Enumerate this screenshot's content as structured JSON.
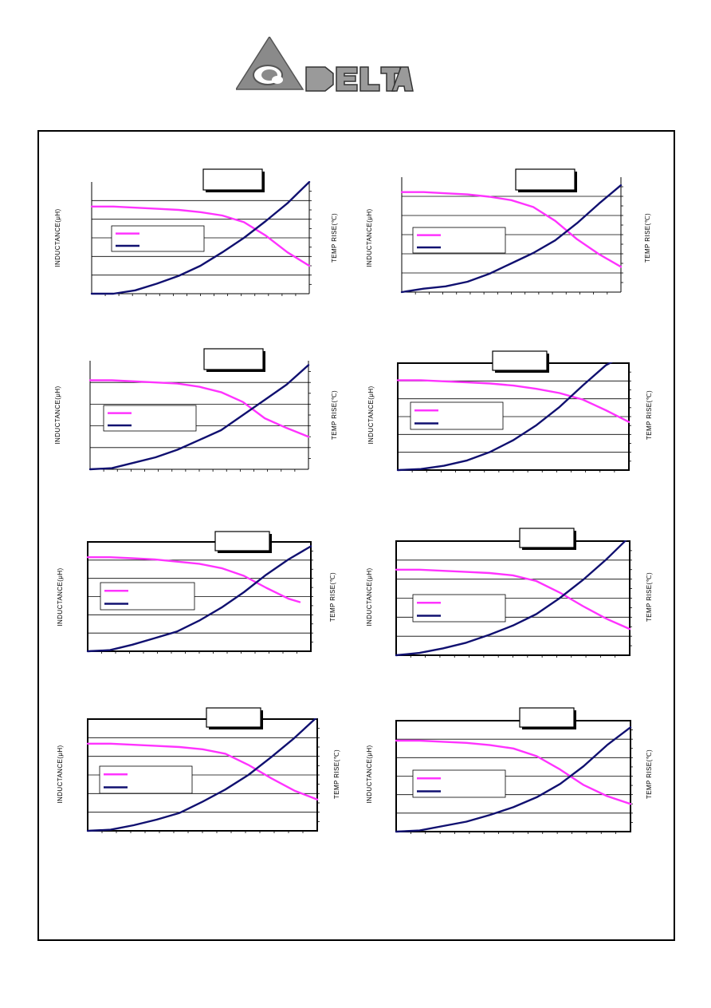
{
  "brand": {
    "name": "DELTA",
    "primary_color": "#ffffff",
    "accent_color": "#000000"
  },
  "colors": {
    "inductance": "#ff33ff",
    "temp_rise": "#101070",
    "grid": "#000000"
  },
  "chart_data": [
    {
      "type": "line",
      "title": "",
      "ylabel": "INDUCTANCE(μH)",
      "y2label": "TEMP RISE(℃)",
      "grid": "horizontal",
      "legend": "left-middle",
      "series": [
        {
          "x": [
            0,
            0.1,
            0.2,
            0.3,
            0.4,
            0.5,
            0.6,
            0.7,
            0.8,
            0.9,
            1.0
          ],
          "values": [
            0.78,
            0.78,
            0.77,
            0.76,
            0.75,
            0.73,
            0.7,
            0.64,
            0.52,
            0.37,
            0.25
          ]
        },
        {
          "x": [
            0,
            0.1,
            0.2,
            0.3,
            0.4,
            0.5,
            0.6,
            0.7,
            0.8,
            0.9,
            1.0
          ],
          "values": [
            0.0,
            0.0,
            0.03,
            0.09,
            0.16,
            0.25,
            0.37,
            0.5,
            0.65,
            0.81,
            1.0
          ]
        }
      ]
    },
    {
      "type": "line",
      "title": "",
      "ylabel": "INDUCTANCE(μH)",
      "y2label": "TEMP RISE(℃)",
      "grid": "horizontal",
      "legend": "left-middle",
      "series": [
        {
          "x": [
            0,
            0.1,
            0.2,
            0.3,
            0.4,
            0.5,
            0.6,
            0.7,
            0.8,
            0.9,
            1.0
          ],
          "values": [
            0.87,
            0.87,
            0.86,
            0.85,
            0.83,
            0.8,
            0.74,
            0.62,
            0.46,
            0.33,
            0.22
          ]
        },
        {
          "x": [
            0,
            0.1,
            0.2,
            0.3,
            0.4,
            0.5,
            0.6,
            0.7,
            0.8,
            0.9,
            1.0
          ],
          "values": [
            0.0,
            0.03,
            0.05,
            0.09,
            0.16,
            0.25,
            0.34,
            0.45,
            0.6,
            0.77,
            0.93
          ]
        }
      ]
    },
    {
      "type": "line",
      "title": "",
      "ylabel": "INDUCTANCE(μH)",
      "y2label": "TEMP RISE(℃)",
      "grid": "horizontal",
      "legend": "left-middle",
      "series": [
        {
          "x": [
            0,
            0.1,
            0.2,
            0.3,
            0.4,
            0.5,
            0.6,
            0.7,
            0.8,
            0.9,
            1.0
          ],
          "values": [
            0.82,
            0.82,
            0.81,
            0.8,
            0.79,
            0.76,
            0.71,
            0.62,
            0.47,
            0.38,
            0.3
          ]
        },
        {
          "x": [
            0,
            0.1,
            0.2,
            0.3,
            0.4,
            0.5,
            0.6,
            0.7,
            0.8,
            0.9,
            1.0
          ],
          "values": [
            0.0,
            0.01,
            0.06,
            0.11,
            0.18,
            0.27,
            0.36,
            0.5,
            0.64,
            0.78,
            0.96
          ]
        }
      ]
    },
    {
      "type": "line",
      "title": "",
      "ylabel": "INDUCTANCE(μH)",
      "y2label": "TEMP RISE(℃)",
      "grid": "horizontal",
      "legend": "left-middle",
      "series": [
        {
          "x": [
            0,
            0.1,
            0.2,
            0.3,
            0.4,
            0.5,
            0.6,
            0.7,
            0.8,
            0.9,
            1.0
          ],
          "values": [
            0.84,
            0.84,
            0.83,
            0.82,
            0.81,
            0.79,
            0.76,
            0.72,
            0.66,
            0.56,
            0.45
          ]
        },
        {
          "x": [
            0,
            0.1,
            0.2,
            0.3,
            0.4,
            0.5,
            0.6,
            0.7,
            0.8,
            0.9,
            1.0
          ],
          "values": [
            0.0,
            0.01,
            0.04,
            0.09,
            0.17,
            0.28,
            0.42,
            0.59,
            0.79,
            0.98,
            1.1
          ]
        }
      ]
    },
    {
      "type": "line",
      "title": "",
      "ylabel": "INDUCTANCE(μH)",
      "y2label": "TEMP RISE(℃)",
      "grid": "horizontal",
      "legend": "left-middle",
      "series": [
        {
          "x": [
            0,
            0.1,
            0.2,
            0.3,
            0.4,
            0.5,
            0.6,
            0.7,
            0.8,
            0.9,
            0.95
          ],
          "values": [
            0.86,
            0.86,
            0.85,
            0.84,
            0.82,
            0.8,
            0.76,
            0.69,
            0.58,
            0.48,
            0.45
          ]
        },
        {
          "x": [
            0,
            0.1,
            0.2,
            0.3,
            0.4,
            0.5,
            0.6,
            0.7,
            0.8,
            0.9,
            1.0
          ],
          "values": [
            0.0,
            0.01,
            0.06,
            0.12,
            0.18,
            0.28,
            0.4,
            0.54,
            0.7,
            0.84,
            0.96
          ]
        }
      ]
    },
    {
      "type": "line",
      "title": "",
      "ylabel": "INDUCTANCE(μH)",
      "y2label": "TEMP RISE(℃)",
      "grid": "horizontal",
      "legend": "left-middle",
      "series": [
        {
          "x": [
            0,
            0.1,
            0.2,
            0.3,
            0.4,
            0.5,
            0.6,
            0.7,
            0.8,
            0.9,
            1.0
          ],
          "values": [
            0.75,
            0.75,
            0.74,
            0.73,
            0.72,
            0.7,
            0.65,
            0.55,
            0.43,
            0.32,
            0.23
          ]
        },
        {
          "x": [
            0,
            0.1,
            0.2,
            0.3,
            0.4,
            0.5,
            0.6,
            0.7,
            0.8,
            0.9,
            1.0
          ],
          "values": [
            0.0,
            0.02,
            0.06,
            0.11,
            0.18,
            0.26,
            0.36,
            0.5,
            0.66,
            0.84,
            1.04
          ]
        }
      ]
    },
    {
      "type": "line",
      "title": "",
      "ylabel": "INDUCTANCE(μH)",
      "y2label": "TEMP RISE(℃)",
      "grid": "horizontal",
      "legend": "left-middle",
      "series": [
        {
          "x": [
            0,
            0.1,
            0.2,
            0.3,
            0.4,
            0.5,
            0.6,
            0.7,
            0.8,
            0.9,
            1.0
          ],
          "values": [
            0.78,
            0.78,
            0.77,
            0.76,
            0.75,
            0.73,
            0.69,
            0.59,
            0.47,
            0.36,
            0.28
          ]
        },
        {
          "x": [
            0,
            0.1,
            0.2,
            0.3,
            0.4,
            0.5,
            0.6,
            0.7,
            0.8,
            0.9,
            1.0
          ],
          "values": [
            0.0,
            0.01,
            0.05,
            0.1,
            0.16,
            0.26,
            0.37,
            0.5,
            0.66,
            0.83,
            1.02
          ]
        }
      ]
    },
    {
      "type": "line",
      "title": "",
      "ylabel": "INDUCTANCE(μH)",
      "y2label": "TEMP RISE(℃)",
      "grid": "horizontal",
      "legend": "left-middle",
      "series": [
        {
          "x": [
            0,
            0.1,
            0.2,
            0.3,
            0.4,
            0.5,
            0.6,
            0.7,
            0.8,
            0.9,
            1.0
          ],
          "values": [
            0.82,
            0.82,
            0.81,
            0.8,
            0.78,
            0.75,
            0.68,
            0.56,
            0.42,
            0.32,
            0.25
          ]
        },
        {
          "x": [
            0,
            0.1,
            0.2,
            0.3,
            0.4,
            0.5,
            0.6,
            0.7,
            0.8,
            0.9,
            1.0
          ],
          "values": [
            0.0,
            0.01,
            0.05,
            0.09,
            0.15,
            0.22,
            0.31,
            0.43,
            0.59,
            0.78,
            0.94
          ]
        }
      ]
    }
  ]
}
